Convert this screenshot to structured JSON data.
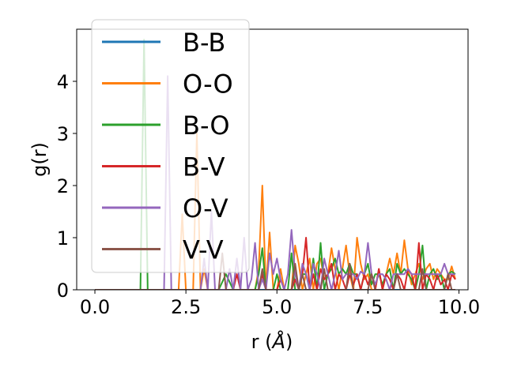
{
  "chart_data": {
    "type": "line",
    "xlabel": "r (",
    "xlabel_unit": "Å",
    "xlabel_close": ")",
    "ylabel": "g(r)",
    "xlim": [
      -0.5,
      10.25
    ],
    "ylim": [
      0,
      5.0
    ],
    "xticks": [
      0.0,
      2.5,
      5.0,
      7.5,
      10.0
    ],
    "xtick_labels": [
      "0.0",
      "2.5",
      "5.0",
      "7.5",
      "10.0"
    ],
    "yticks": [
      0,
      1,
      2,
      3,
      4
    ],
    "ytick_labels": [
      "0",
      "1",
      "2",
      "3",
      "4"
    ],
    "grid": false,
    "legend_position": "top-left",
    "series": [
      {
        "name": "B-B",
        "color": "#1f77b4",
        "x": [
          0.0,
          9.9
        ],
        "y": [
          0.0,
          0.0
        ]
      },
      {
        "name": "O-O",
        "color": "#ff7f0e",
        "x": [
          0.0,
          2.3,
          2.4,
          2.5,
          2.6,
          2.7,
          2.8,
          2.9,
          3.0,
          3.1,
          3.2,
          3.4,
          3.6,
          3.8,
          4.0,
          4.2,
          4.4,
          4.5,
          4.6,
          4.7,
          4.8,
          4.9,
          5.0,
          5.1,
          5.2,
          5.3,
          5.4,
          5.5,
          5.6,
          5.7,
          5.8,
          5.9,
          6.0,
          6.1,
          6.2,
          6.3,
          6.4,
          6.5,
          6.6,
          6.7,
          6.8,
          6.9,
          7.0,
          7.1,
          7.2,
          7.3,
          7.4,
          7.5,
          7.6,
          7.7,
          7.8,
          7.9,
          8.0,
          8.1,
          8.2,
          8.3,
          8.4,
          8.5,
          8.6,
          8.7,
          8.8,
          8.9,
          9.0,
          9.1,
          9.2,
          9.3,
          9.4,
          9.5,
          9.6,
          9.7,
          9.8,
          9.9
        ],
        "y": [
          0.0,
          0.0,
          1.45,
          0.0,
          0.0,
          0.0,
          3.0,
          0.0,
          0.4,
          0.0,
          0.0,
          0.0,
          0.0,
          0.0,
          0.0,
          0.0,
          0.0,
          0.4,
          2.0,
          0.0,
          1.1,
          0.0,
          0.0,
          0.4,
          0.0,
          0.0,
          0.0,
          0.85,
          0.5,
          0.0,
          0.3,
          0.6,
          0.0,
          0.5,
          0.6,
          0.2,
          0.3,
          0.8,
          0.4,
          0.0,
          0.4,
          0.85,
          0.3,
          0.0,
          1.0,
          0.5,
          0.2,
          0.3,
          0.0,
          0.0,
          0.4,
          0.0,
          0.3,
          0.6,
          0.3,
          0.7,
          0.3,
          0.95,
          0.4,
          0.1,
          0.3,
          0.5,
          0.2,
          0.4,
          0.5,
          0.2,
          0.4,
          0.3,
          0.2,
          0.2,
          0.45,
          0.2
        ]
      },
      {
        "name": "B-O",
        "color": "#2ca02c",
        "x": [
          0.0,
          1.2,
          1.25,
          1.35,
          1.45,
          1.5,
          2.6,
          3.4,
          3.6,
          3.8,
          4.2,
          4.4,
          4.5,
          4.6,
          4.7,
          4.8,
          4.9,
          5.0,
          5.1,
          5.2,
          5.3,
          5.4,
          5.5,
          5.6,
          5.7,
          5.8,
          5.9,
          6.0,
          6.1,
          6.2,
          6.3,
          6.4,
          6.5,
          6.6,
          6.7,
          6.8,
          6.9,
          7.0,
          7.1,
          7.2,
          7.3,
          7.4,
          7.5,
          7.6,
          7.7,
          7.8,
          7.9,
          8.0,
          8.1,
          8.2,
          8.3,
          8.4,
          8.5,
          8.6,
          8.7,
          8.8,
          8.9,
          9.0,
          9.1,
          9.2,
          9.3,
          9.4,
          9.5,
          9.6,
          9.7,
          9.8,
          9.9
        ],
        "y": [
          0.0,
          0.0,
          0.0,
          4.8,
          0.0,
          0.0,
          0.0,
          0.0,
          0.3,
          0.0,
          0.0,
          0.0,
          0.3,
          0.8,
          0.0,
          0.0,
          0.0,
          0.3,
          0.0,
          0.0,
          0.0,
          0.7,
          0.0,
          0.0,
          0.3,
          0.3,
          0.0,
          0.6,
          0.0,
          0.9,
          0.0,
          0.3,
          0.4,
          0.6,
          0.3,
          0.4,
          0.3,
          0.5,
          0.3,
          0.3,
          0.0,
          0.3,
          0.5,
          0.1,
          0.3,
          0.3,
          0.1,
          0.3,
          0.4,
          0.0,
          0.5,
          0.3,
          0.4,
          0.3,
          0.2,
          0.0,
          0.3,
          0.85,
          0.0,
          0.3,
          0.4,
          0.2,
          0.3,
          0.0,
          0.3,
          0.35,
          0.3
        ]
      },
      {
        "name": "B-V",
        "color": "#d62728",
        "x": [
          0.0,
          3.8,
          3.9,
          4.0,
          4.5,
          4.6,
          4.7,
          5.0,
          5.1,
          5.2,
          5.4,
          5.5,
          5.6,
          5.7,
          5.8,
          5.9,
          6.0,
          6.1,
          6.2,
          6.3,
          6.4,
          6.5,
          6.6,
          6.7,
          6.8,
          6.9,
          7.0,
          7.1,
          7.2,
          7.3,
          7.4,
          7.5,
          7.6,
          7.7,
          7.8,
          7.9,
          8.0,
          8.1,
          8.2,
          8.3,
          8.4,
          8.5,
          8.6,
          8.7,
          8.8,
          8.9,
          9.0,
          9.1,
          9.2,
          9.3,
          9.4,
          9.5,
          9.6,
          9.7,
          9.8,
          9.9
        ],
        "y": [
          0.0,
          0.0,
          0.3,
          0.0,
          0.0,
          0.3,
          0.0,
          0.0,
          0.2,
          0.0,
          0.0,
          0.2,
          0.0,
          0.3,
          1.0,
          0.0,
          0.3,
          0.0,
          0.4,
          0.2,
          0.3,
          0.5,
          0.0,
          0.3,
          0.2,
          0.0,
          0.3,
          0.1,
          0.3,
          0.0,
          0.3,
          0.1,
          0.3,
          0.0,
          0.4,
          0.0,
          0.3,
          0.2,
          0.0,
          0.3,
          0.2,
          0.0,
          0.4,
          0.3,
          0.0,
          0.9,
          0.0,
          0.3,
          0.2,
          0.0,
          0.3,
          0.1,
          0.2,
          0.0,
          0.3,
          0.2
        ]
      },
      {
        "name": "O-V",
        "color": "#9467bd",
        "x": [
          0.0,
          1.9,
          2.0,
          2.1,
          2.9,
          3.0,
          3.1,
          3.2,
          3.3,
          3.6,
          3.7,
          3.8,
          3.9,
          4.0,
          4.1,
          4.2,
          4.3,
          4.4,
          4.5,
          4.6,
          4.7,
          4.8,
          4.9,
          5.0,
          5.1,
          5.2,
          5.3,
          5.4,
          5.5,
          5.6,
          5.7,
          5.8,
          5.9,
          6.0,
          6.1,
          6.2,
          6.3,
          6.4,
          6.5,
          6.6,
          6.7,
          6.8,
          6.9,
          7.0,
          7.1,
          7.2,
          7.3,
          7.4,
          7.5,
          7.6,
          7.7,
          7.8,
          7.9,
          8.0,
          8.1,
          8.2,
          8.3,
          8.4,
          8.5,
          8.6,
          8.7,
          8.8,
          8.9,
          9.0,
          9.1,
          9.2,
          9.3,
          9.4,
          9.5,
          9.6,
          9.7,
          9.8,
          9.9
        ],
        "y": [
          0.0,
          0.0,
          4.1,
          0.0,
          0.0,
          0.6,
          0.0,
          1.5,
          0.0,
          0.0,
          0.4,
          0.0,
          0.6,
          0.0,
          1.0,
          0.0,
          0.2,
          0.9,
          0.0,
          0.2,
          0.0,
          0.7,
          0.3,
          0.6,
          0.2,
          0.0,
          0.3,
          1.15,
          0.3,
          0.0,
          0.5,
          0.3,
          0.0,
          0.5,
          0.3,
          0.0,
          0.6,
          0.3,
          0.0,
          0.3,
          0.75,
          0.2,
          0.3,
          0.3,
          0.3,
          0.2,
          0.35,
          0.3,
          0.9,
          0.3,
          0.1,
          0.3,
          0.3,
          0.2,
          0.0,
          0.3,
          0.3,
          0.3,
          0.3,
          0.4,
          0.3,
          0.3,
          0.3,
          0.3,
          0.3,
          0.3,
          0.3,
          0.3,
          0.3,
          0.5,
          0.3,
          0.3,
          0.3
        ]
      },
      {
        "name": "V-V",
        "color": "#8c564b",
        "x": [
          0.0,
          3.4,
          3.5,
          3.6,
          4.5,
          4.6,
          4.7,
          5.4,
          5.5,
          5.6,
          5.7,
          5.8,
          6.2,
          6.3,
          6.4,
          6.9,
          7.0,
          7.1,
          7.5,
          7.6,
          7.7,
          8.2,
          8.3,
          8.4,
          8.9,
          9.0,
          9.1,
          9.6,
          9.7,
          9.8,
          9.9
        ],
        "y": [
          0.0,
          0.0,
          0.7,
          0.0,
          0.0,
          0.4,
          0.0,
          0.0,
          0.5,
          0.0,
          0.3,
          0.0,
          0.0,
          0.4,
          0.0,
          0.0,
          0.5,
          0.0,
          0.0,
          0.3,
          0.0,
          0.0,
          0.3,
          0.0,
          0.0,
          0.4,
          0.0,
          0.0,
          0.3,
          0.0,
          0.0
        ]
      }
    ]
  }
}
